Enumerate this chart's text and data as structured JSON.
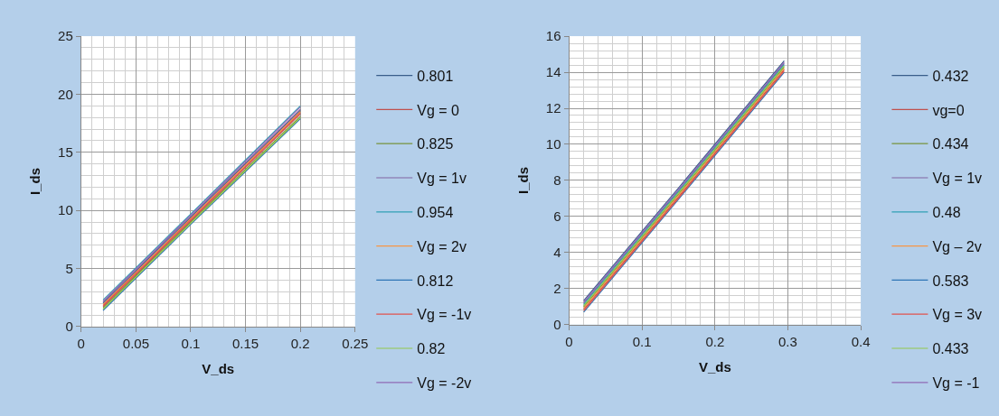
{
  "chart_data": [
    {
      "type": "line",
      "xlabel": "V_ds",
      "ylabel": "I_ds",
      "xlim": [
        0,
        0.25
      ],
      "xticks": [
        0,
        0.05,
        0.1,
        0.15,
        0.2,
        0.25
      ],
      "ylim": [
        0,
        25
      ],
      "yticks": [
        0,
        5,
        10,
        15,
        20,
        25
      ],
      "grid": true,
      "legend": "right",
      "marker": "none",
      "line_style": "solid",
      "x": [
        0.02,
        0.1,
        0.2
      ],
      "series": [
        {
          "name": "0.801",
          "color": "#385d8a",
          "values": [
            2.0,
            9.4,
            18.6
          ]
        },
        {
          "name": "Vg = 0",
          "color": "#c0504d",
          "values": [
            1.7,
            9.1,
            18.3
          ]
        },
        {
          "name": "0.825",
          "color": "#77933c",
          "values": [
            1.6,
            9.0,
            18.1
          ]
        },
        {
          "name": "Vg = 1v",
          "color": "#8064a2",
          "values": [
            2.1,
            9.5,
            18.7
          ]
        },
        {
          "name": "0.954",
          "color": "#31a0b4",
          "values": [
            2.3,
            9.7,
            19.0
          ]
        },
        {
          "name": "Vg = 2v",
          "color": "#f79646",
          "values": [
            1.9,
            9.3,
            18.5
          ]
        },
        {
          "name": "0.812",
          "color": "#2e75b6",
          "values": [
            1.4,
            8.8,
            17.9
          ]
        },
        {
          "name": "Vg = -1v",
          "color": "#e0534e",
          "values": [
            1.8,
            9.2,
            18.4
          ]
        },
        {
          "name": "0.82",
          "color": "#92c84a",
          "values": [
            1.5,
            8.9,
            18.0
          ]
        },
        {
          "name": "Vg = -2v",
          "color": "#8f6bb5",
          "values": [
            2.2,
            9.6,
            18.9
          ]
        }
      ]
    },
    {
      "type": "line",
      "xlabel": "V_ds",
      "ylabel": "I_ds",
      "xlim": [
        0,
        0.4
      ],
      "xticks": [
        0,
        0.1,
        0.2,
        0.3,
        0.4
      ],
      "ylim": [
        0,
        16
      ],
      "yticks": [
        0,
        2,
        4,
        6,
        8,
        10,
        12,
        14,
        16
      ],
      "grid": true,
      "legend": "right",
      "marker": "none",
      "line_style": "solid",
      "x": [
        0.02,
        0.15,
        0.295
      ],
      "series": [
        {
          "name": "0.432",
          "color": "#385d8a",
          "values": [
            1.33,
            7.58,
            14.63
          ]
        },
        {
          "name": "vg=0",
          "color": "#c0504d",
          "values": [
            0.84,
            7.09,
            14.14
          ]
        },
        {
          "name": "0.434",
          "color": "#77933c",
          "values": [
            0.98,
            7.23,
            14.28
          ]
        },
        {
          "name": "Vg = 1v",
          "color": "#8064a2",
          "values": [
            1.19,
            7.44,
            14.49
          ]
        },
        {
          "name": "0.48",
          "color": "#31a0b4",
          "values": [
            1.12,
            7.37,
            14.42
          ]
        },
        {
          "name": "Vg – 2v",
          "color": "#f79646",
          "values": [
            0.91,
            7.16,
            14.21
          ]
        },
        {
          "name": "0.583",
          "color": "#2e75b6",
          "values": [
            0.7,
            6.95,
            14.0
          ]
        },
        {
          "name": "Vg = 3v",
          "color": "#e0534e",
          "values": [
            0.77,
            7.02,
            14.07
          ]
        },
        {
          "name": "0.433",
          "color": "#92c84a",
          "values": [
            1.05,
            7.3,
            14.35
          ]
        },
        {
          "name": "Vg = -1",
          "color": "#8f6bb5",
          "values": [
            1.26,
            7.51,
            14.56
          ]
        }
      ]
    }
  ]
}
